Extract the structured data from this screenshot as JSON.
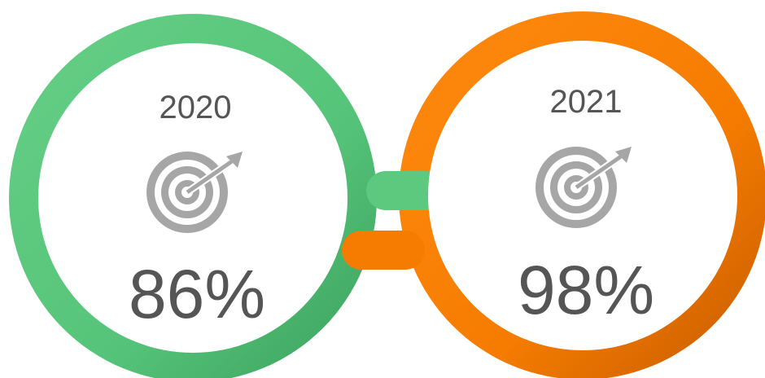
{
  "items": [
    {
      "year": "2020",
      "value": "86%"
    },
    {
      "year": "2021",
      "value": "98%"
    }
  ]
}
